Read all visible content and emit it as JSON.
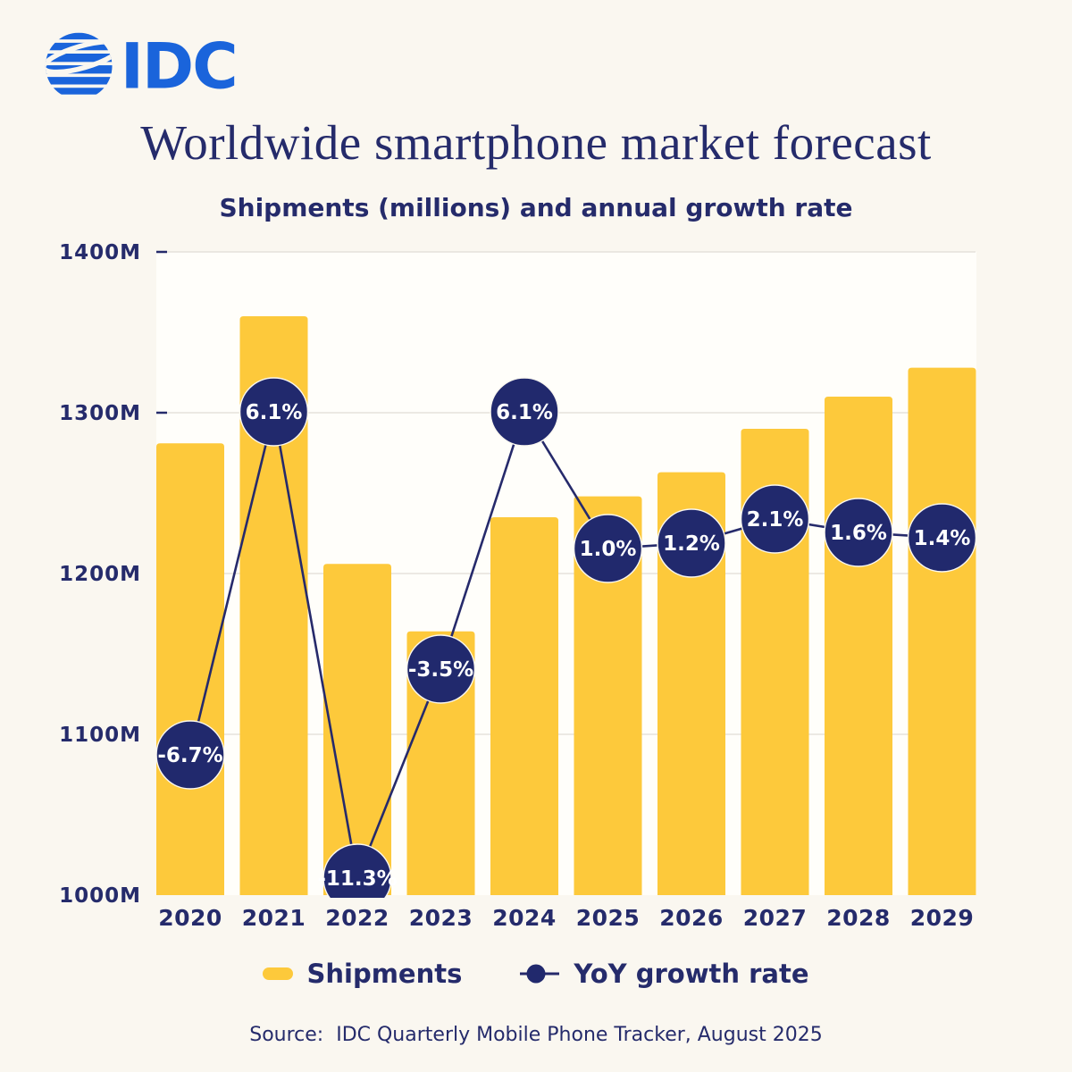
{
  "logo": {
    "text": "IDC",
    "color": "#1A64DB"
  },
  "title": "Worldwide smartphone market forecast",
  "subtitle": "Shipments (millions) and annual growth rate",
  "source": "Source:  IDC Quarterly Mobile Phone Tracker, August 2025",
  "legend": {
    "shipments_label": "Shipments",
    "yoy_label": "YoY growth rate"
  },
  "colors": {
    "bar": "#FDC93B",
    "navy_text": "#252B6B",
    "marker_fill": "#21296D",
    "marker_text": "#FFFFFF",
    "line": "#262A6B",
    "gridline": "#E5E2DB",
    "plot_bg": "#FFFEFA",
    "page_bg": "#FAF7F0",
    "logo_blue": "#1A64DB"
  },
  "chart_data": {
    "type": "bar",
    "subtype": "bar-line-combo",
    "title": "Worldwide smartphone market forecast",
    "subtitle": "Shipments (millions) and annual growth rate",
    "categories": [
      "2020",
      "2021",
      "2022",
      "2023",
      "2024",
      "2025",
      "2026",
      "2027",
      "2028",
      "2029"
    ],
    "series": [
      {
        "name": "Shipments",
        "type": "bar",
        "unit": "millions of units",
        "values": [
          1281,
          1360,
          1206,
          1164,
          1235,
          1248,
          1263,
          1290,
          1310,
          1328
        ]
      },
      {
        "name": "YoY growth rate",
        "type": "line",
        "unit": "%",
        "values": [
          -6.7,
          6.1,
          -11.3,
          -3.5,
          6.1,
          1.0,
          1.2,
          2.1,
          1.6,
          1.4
        ],
        "labels": [
          "-6.7%",
          "6.1%",
          "-11.3%",
          "-3.5%",
          "6.1%",
          "1.0%",
          "1.2%",
          "2.1%",
          "1.6%",
          "1.4%"
        ]
      }
    ],
    "y_axis": {
      "label": "",
      "tick_labels": [
        "1400M",
        "1300M",
        "1200M",
        "1100M",
        "1000M"
      ],
      "tick_values": [
        1400,
        1300,
        1200,
        1100,
        1000
      ],
      "min": 1000,
      "max": 1400,
      "grid": true
    },
    "y2_axis": {
      "min": -12,
      "max": 12,
      "visible": false
    },
    "legend_position": "bottom",
    "source": "Source:  IDC Quarterly Mobile Phone Tracker, August 2025"
  }
}
